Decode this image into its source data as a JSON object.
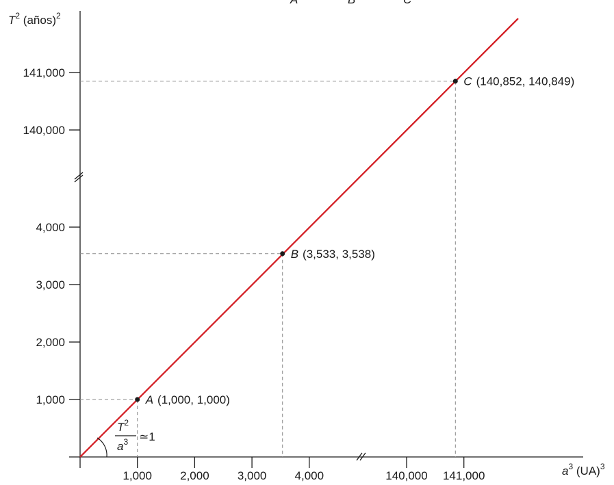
{
  "chart_data": {
    "type": "line",
    "title": "",
    "top_caption_letters": [
      "A",
      "B",
      "C"
    ],
    "xlabel": {
      "var": "a",
      "exp": "3",
      "unit": " (UA)",
      "unit_exp": "3"
    },
    "ylabel": {
      "var": "T",
      "exp": "2",
      "unit": " (años)",
      "unit_exp": "2"
    },
    "x_ticks": [
      {
        "value": 1000,
        "label": "1,000"
      },
      {
        "value": 2000,
        "label": "2,000"
      },
      {
        "value": 3000,
        "label": "3,000"
      },
      {
        "value": 4000,
        "label": "4,000"
      },
      {
        "value": 140000,
        "label": "140,000"
      },
      {
        "value": 141000,
        "label": "141,000"
      }
    ],
    "y_ticks": [
      {
        "value": 1000,
        "label": "1,000"
      },
      {
        "value": 2000,
        "label": "2,000"
      },
      {
        "value": 3000,
        "label": "3,000"
      },
      {
        "value": 4000,
        "label": "4,000"
      },
      {
        "value": 140000,
        "label": "140,000"
      },
      {
        "value": 141000,
        "label": "141,000"
      }
    ],
    "axis_break": {
      "lower_segment_max": 4000,
      "upper_segment_min": 140000
    },
    "points": [
      {
        "name": "A",
        "x": 1000,
        "y": 1000,
        "coords": "(1,000, 1,000)"
      },
      {
        "name": "B",
        "x": 3533,
        "y": 3538,
        "coords": "(3,533, 3,538)"
      },
      {
        "name": "C",
        "x": 140852,
        "y": 140849,
        "coords": "(140,852, 140,849)"
      }
    ],
    "slope_annotation": {
      "numerator_var": "T",
      "numerator_exp": "2",
      "denominator_var": "a",
      "denominator_exp": "3",
      "relation": "≃1"
    },
    "line_color": "#d42026",
    "grid": false
  }
}
